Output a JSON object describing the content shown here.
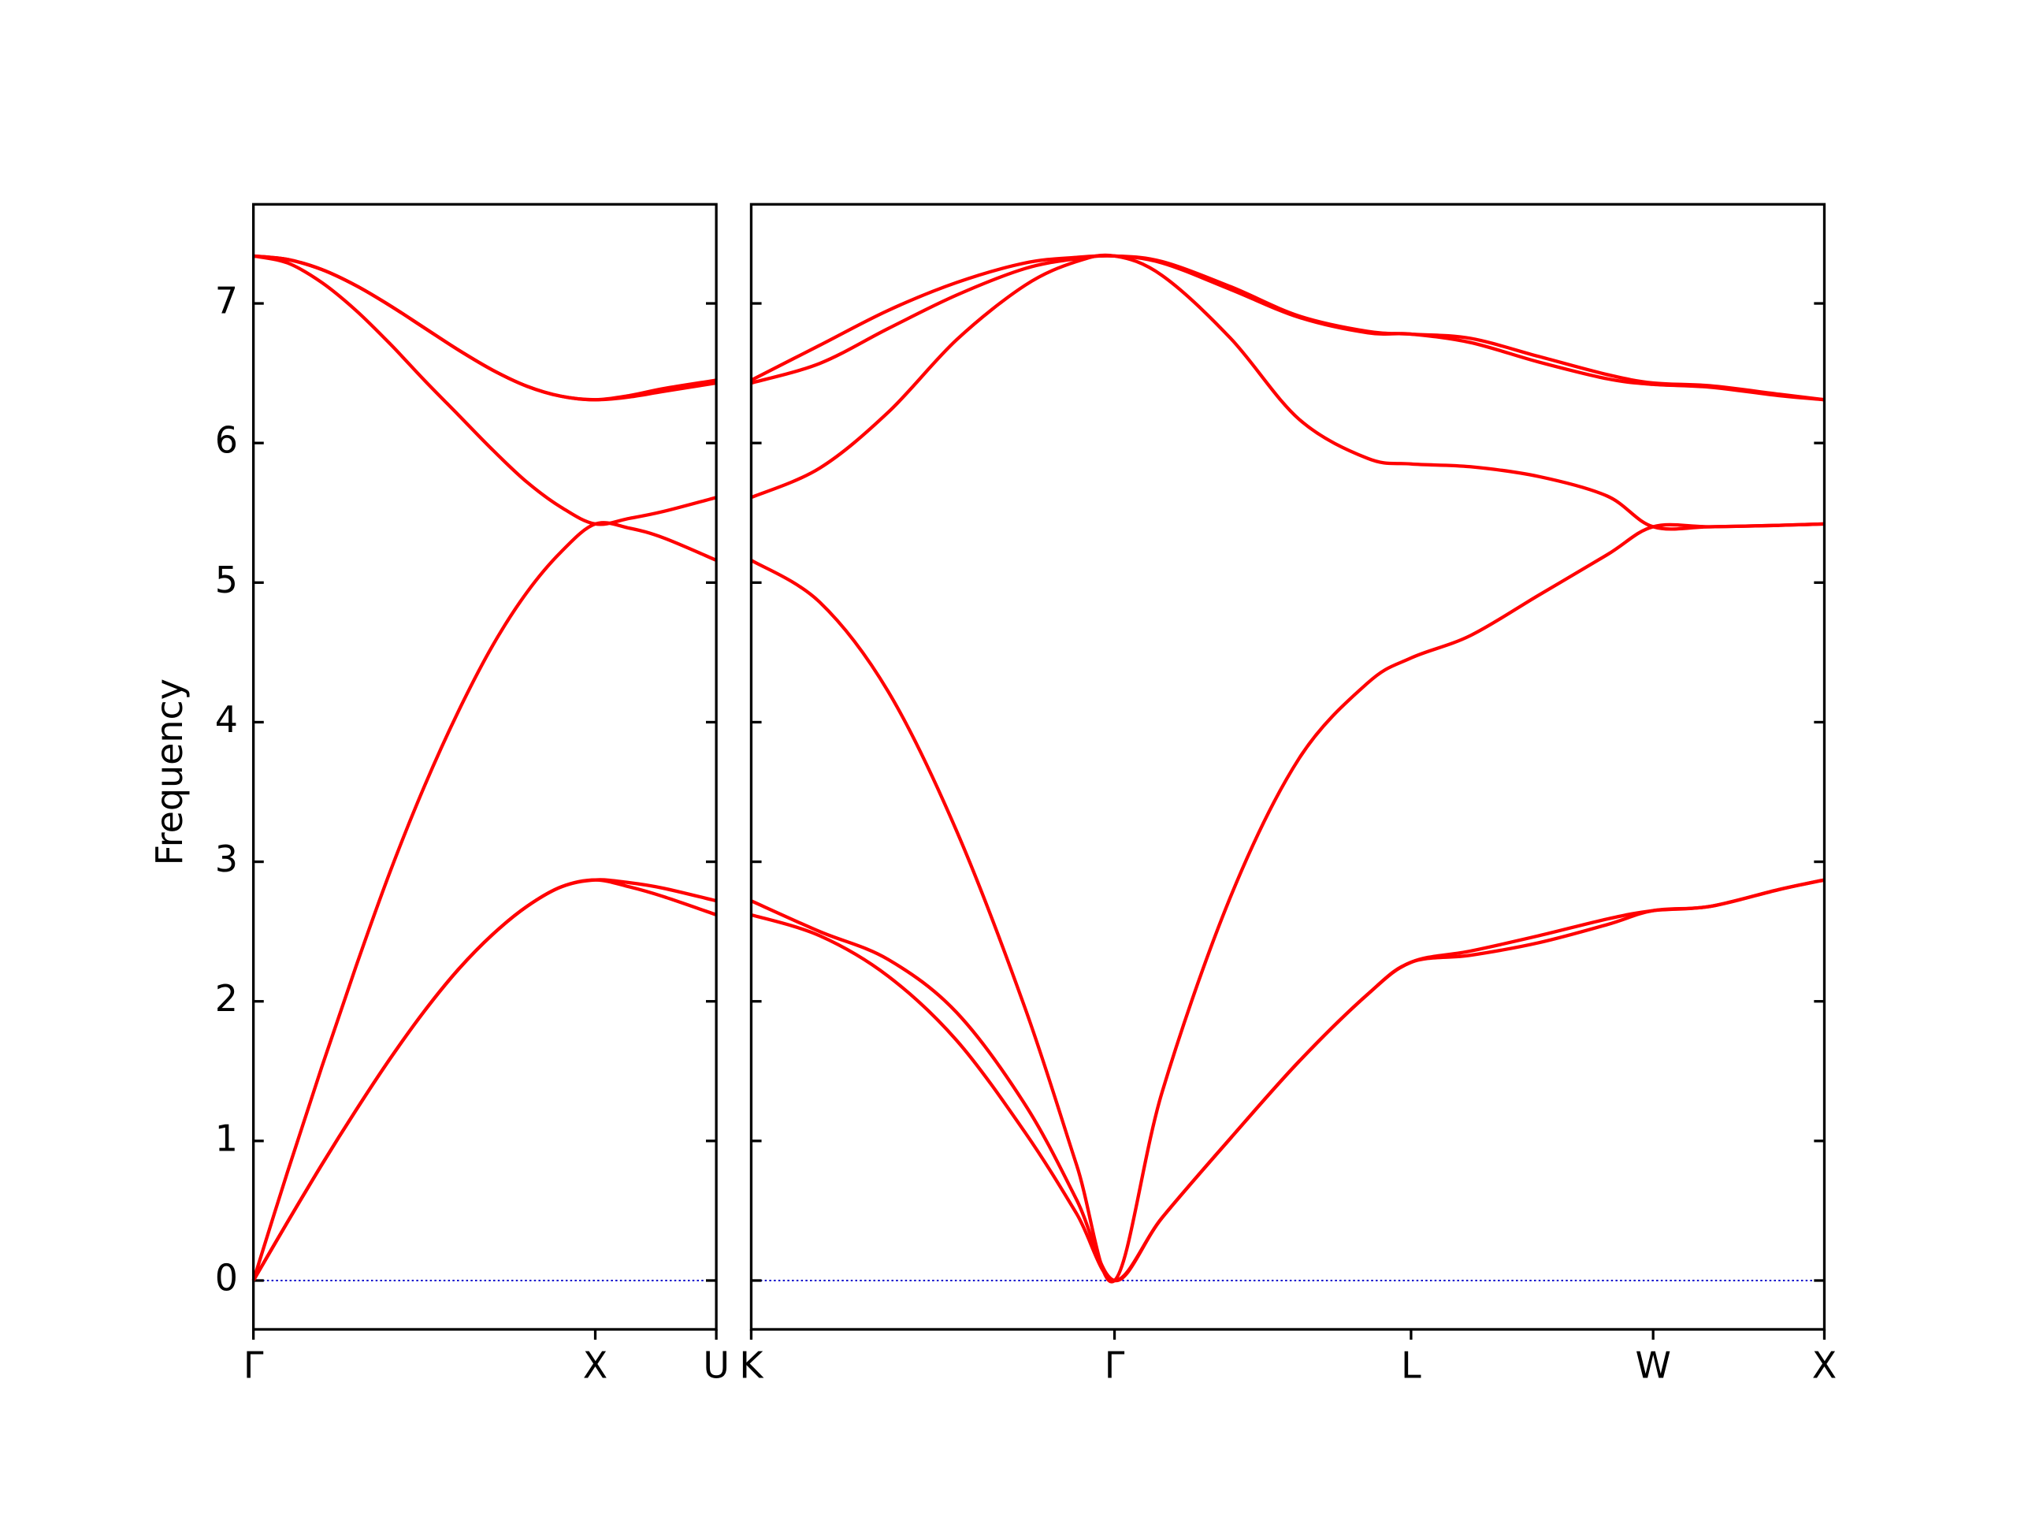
{
  "chart_data": [
    {
      "type": "line",
      "ylabel": "Frequency",
      "x": [
        0,
        0.1,
        0.2,
        0.3,
        0.4,
        0.5,
        0.6,
        0.7,
        0.8,
        0.9,
        1,
        1.1,
        1.2,
        1.354
      ],
      "xlim": [
        0,
        1.354
      ],
      "xticks": [
        {
          "value": 0,
          "label": "Γ"
        },
        {
          "value": 1,
          "label": "X"
        },
        {
          "value": 1.354,
          "label": "U"
        }
      ],
      "ylim": [
        -0.35,
        7.71
      ],
      "yticks": [
        0,
        1,
        2,
        3,
        4,
        5,
        6,
        7
      ],
      "zero_line": {
        "value": 0,
        "color": "#0000cc"
      },
      "series": [
        {
          "color": "#ff0000",
          "values": [
            0,
            0.42,
            0.83,
            1.22,
            1.59,
            1.93,
            2.23,
            2.48,
            2.68,
            2.82,
            2.87,
            2.85,
            2.81,
            2.72
          ]
        },
        {
          "color": "#ff0000",
          "values": [
            0,
            0.42,
            0.83,
            1.22,
            1.59,
            1.93,
            2.23,
            2.48,
            2.68,
            2.82,
            2.87,
            2.82,
            2.75,
            2.62
          ]
        },
        {
          "color": "#ff0000",
          "values": [
            0,
            0.78,
            1.53,
            2.25,
            2.93,
            3.54,
            4.08,
            4.55,
            4.93,
            5.22,
            5.42,
            5.39,
            5.32,
            5.16
          ]
        },
        {
          "color": "#ff0000",
          "values": [
            7.34,
            7.29,
            7.15,
            6.95,
            6.71,
            6.45,
            6.2,
            5.95,
            5.72,
            5.54,
            5.42,
            5.46,
            5.51,
            5.61
          ]
        },
        {
          "color": "#ff0000",
          "values": [
            7.34,
            7.315,
            7.243,
            7.128,
            6.984,
            6.825,
            6.666,
            6.522,
            6.407,
            6.335,
            6.31,
            6.33,
            6.37,
            6.43
          ]
        },
        {
          "color": "#ff0000",
          "values": [
            7.34,
            7.315,
            7.243,
            7.128,
            6.984,
            6.825,
            6.666,
            6.522,
            6.407,
            6.335,
            6.31,
            6.34,
            6.39,
            6.45
          ]
        }
      ]
    },
    {
      "type": "line",
      "x": [
        0,
        0.2,
        0.4,
        0.6,
        0.8,
        0.95,
        1.061,
        1.2,
        1.4,
        1.6,
        1.8,
        1.927,
        2.1,
        2.3,
        2.5,
        2.634,
        2.8,
        3.0,
        3.134
      ],
      "xlim": [
        0,
        3.134
      ],
      "xticks": [
        {
          "value": 0,
          "label": "K"
        },
        {
          "value": 1.061,
          "label": "Γ"
        },
        {
          "value": 1.927,
          "label": "L"
        },
        {
          "value": 2.634,
          "label": "W"
        },
        {
          "value": 3.134,
          "label": "X"
        }
      ],
      "zero_line": {
        "value": 0,
        "color": "#0000cc"
      },
      "series": [
        {
          "color": "#ff0000",
          "values": [
            2.62,
            2.47,
            2.18,
            1.72,
            1.06,
            0.48,
            0,
            0.45,
            1.02,
            1.57,
            2.05,
            2.28,
            2.33,
            2.42,
            2.55,
            2.65,
            2.68,
            2.8,
            2.87
          ]
        },
        {
          "color": "#ff0000",
          "values": [
            2.72,
            2.5,
            2.3,
            1.92,
            1.26,
            0.58,
            0,
            0.45,
            1.02,
            1.57,
            2.05,
            2.28,
            2.36,
            2.47,
            2.59,
            2.65,
            2.68,
            2.8,
            2.87
          ]
        },
        {
          "color": "#ff0000",
          "values": [
            5.16,
            4.86,
            4.22,
            3.22,
            1.95,
            0.83,
            0,
            1.35,
            2.75,
            3.74,
            4.28,
            4.46,
            4.62,
            4.91,
            5.2,
            5.4,
            5.4,
            5.41,
            5.42
          ]
        },
        {
          "color": "#ff0000",
          "values": [
            5.61,
            5.82,
            6.22,
            6.74,
            7.13,
            7.3,
            7.34,
            7.2,
            6.75,
            6.17,
            5.89,
            5.85,
            5.83,
            5.76,
            5.62,
            5.4,
            5.4,
            5.41,
            5.42
          ]
        },
        {
          "color": "#ff0000",
          "values": [
            6.43,
            6.57,
            6.82,
            7.06,
            7.25,
            7.32,
            7.34,
            7.29,
            7.1,
            6.9,
            6.79,
            6.78,
            6.72,
            6.58,
            6.46,
            6.42,
            6.4,
            6.34,
            6.31
          ]
        },
        {
          "color": "#ff0000",
          "values": [
            6.45,
            6.7,
            6.95,
            7.15,
            7.29,
            7.33,
            7.34,
            7.3,
            7.12,
            6.91,
            6.8,
            6.78,
            6.75,
            6.62,
            6.49,
            6.43,
            6.41,
            6.35,
            6.31
          ]
        }
      ]
    }
  ]
}
